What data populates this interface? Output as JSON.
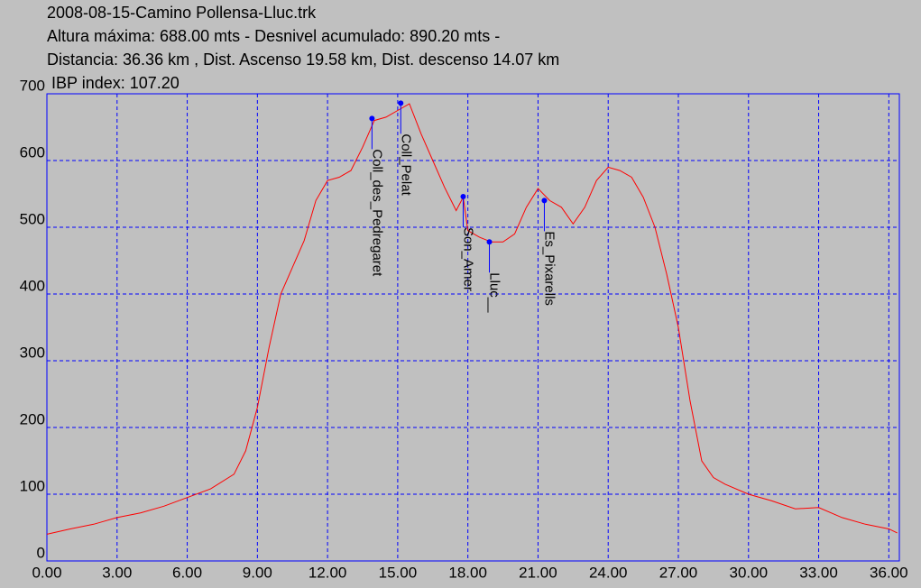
{
  "chart_data": {
    "type": "line",
    "title": "2008-08-15-Camino Pollensa-Lluc.trk",
    "subtitles": [
      "Altura máxima: 688.00 mts -  Desnivel acumulado: 890.20 mts -",
      "Distancia: 36.36 km , Dist. Ascenso 19.58 km,  Dist. descenso 14.07 km",
      " IBP index: 107.20"
    ],
    "color": "#ff0000",
    "x": [
      0,
      1,
      2,
      3,
      4,
      5,
      6,
      7,
      8,
      8.5,
      9,
      9.5,
      10,
      10.5,
      11,
      11.5,
      12,
      12.5,
      13,
      13.5,
      14,
      14.5,
      15,
      15.5,
      16,
      16.5,
      17,
      17.5,
      17.8,
      18,
      18.5,
      19,
      19.5,
      20,
      20.5,
      21,
      21.5,
      22,
      22.5,
      23,
      23.5,
      24,
      24.5,
      25,
      25.5,
      26,
      26.5,
      27,
      27.5,
      28,
      28.5,
      29,
      30,
      31,
      32,
      33,
      34,
      35,
      36,
      36.36
    ],
    "values": [
      40,
      48,
      55,
      65,
      72,
      82,
      95,
      108,
      130,
      165,
      230,
      320,
      400,
      440,
      480,
      540,
      570,
      575,
      585,
      620,
      660,
      665,
      675,
      685,
      640,
      600,
      560,
      525,
      545,
      495,
      485,
      478,
      478,
      490,
      530,
      558,
      540,
      530,
      505,
      530,
      570,
      590,
      585,
      575,
      545,
      500,
      430,
      350,
      240,
      150,
      125,
      115,
      100,
      90,
      78,
      80,
      65,
      55,
      48,
      42
    ],
    "waypoints": [
      {
        "name": "Coll_des_Pedregaret",
        "x": 13.9,
        "y": 663
      },
      {
        "name": "Coll_Pelat",
        "x": 15.13,
        "y": 686
      },
      {
        "name": "Son_Amer",
        "x": 17.8,
        "y": 546
      },
      {
        "name": "Lluc__",
        "x": 18.92,
        "y": 478
      },
      {
        "name": "Es_Pixarells",
        "x": 21.27,
        "y": 540
      }
    ],
    "waypoint_color": "#0000ff",
    "xlim": [
      0,
      36.45
    ],
    "ylim": [
      0,
      700
    ],
    "xticks": [
      {
        "value": 0,
        "label": "0.00"
      },
      {
        "value": 3,
        "label": "3.00"
      },
      {
        "value": 6,
        "label": "6.00"
      },
      {
        "value": 9,
        "label": "9.00"
      },
      {
        "value": 12,
        "label": "12.00"
      },
      {
        "value": 15,
        "label": "15.00"
      },
      {
        "value": 18,
        "label": "18.00"
      },
      {
        "value": 21,
        "label": "21.00"
      },
      {
        "value": 24,
        "label": "24.00"
      },
      {
        "value": 27,
        "label": "27.00"
      },
      {
        "value": 30,
        "label": "30.00"
      },
      {
        "value": 33,
        "label": "33.00"
      },
      {
        "value": 36,
        "label": "36.00"
      }
    ],
    "yticks": [
      0,
      100,
      200,
      300,
      400,
      500,
      600,
      700
    ],
    "grid": true
  }
}
